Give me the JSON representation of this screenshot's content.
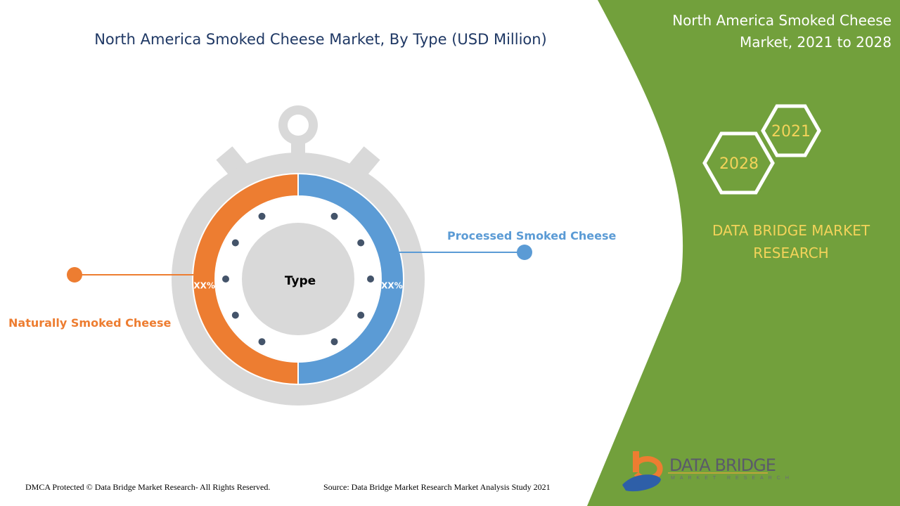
{
  "header": {
    "title": "North America Smoked Cheese Market, By Type (USD Million)"
  },
  "panel": {
    "title_line1": "North America Smoked Cheese",
    "title_line2": "Market, 2021 to 2028",
    "year_a": "2021",
    "year_b": "2028",
    "brand_line1": "DATA BRIDGE MARKET",
    "brand_line2": "RESEARCH",
    "color": "#72a03c"
  },
  "chart_data": {
    "type": "pie",
    "title": "North America Smoked Cheese Market, By Type (USD Million)",
    "center_label": "Type",
    "series": [
      {
        "name": "Processed Smoked Cheese",
        "value_label": "XX%",
        "share": 50,
        "color": "#5b9bd5"
      },
      {
        "name": "Naturally Smoked Cheese",
        "value_label": "XX%",
        "share": 50,
        "color": "#ed7d31"
      }
    ]
  },
  "footer": {
    "copyright": "DMCA Protected © Data Bridge Market Research- All Rights Reserved.",
    "source": "Source: Data Bridge Market Research Market Analysis Study 2021"
  },
  "logo": {
    "name": "DATA BRIDGE",
    "sub": "MARKET RESEARCH"
  }
}
